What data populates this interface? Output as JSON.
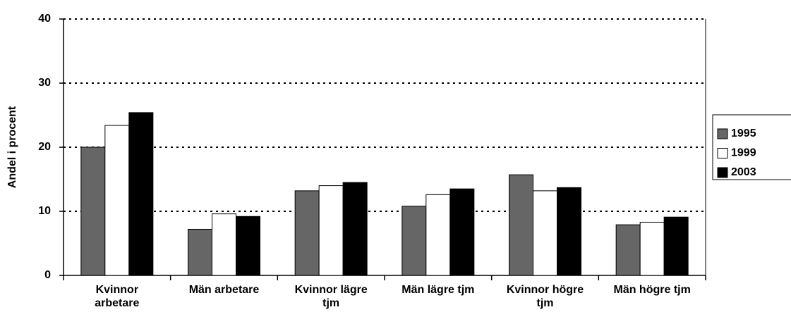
{
  "chart_data": {
    "type": "bar",
    "y_label": "Andel i procent",
    "categories": [
      "Kvinnor\narbetare",
      "Män arbetare",
      "Kvinnor lägre\ntjm",
      "Män lägre tjm",
      "Kvinnor högre\ntjm",
      "Män högre tjm"
    ],
    "series": [
      {
        "name": "1995",
        "color": "#666666",
        "values": [
          20.0,
          7.2,
          13.2,
          10.8,
          15.7,
          7.9
        ]
      },
      {
        "name": "1999",
        "color": "#ffffff",
        "values": [
          23.4,
          9.6,
          14.0,
          12.6,
          13.2,
          8.3
        ]
      },
      {
        "name": "2003",
        "color": "#000000",
        "values": [
          25.4,
          9.2,
          14.5,
          13.5,
          13.7,
          9.1
        ]
      }
    ],
    "ylim": [
      0,
      40
    ],
    "yticks": [
      0,
      10,
      20,
      30,
      40
    ],
    "grid": true,
    "legend": "right"
  }
}
